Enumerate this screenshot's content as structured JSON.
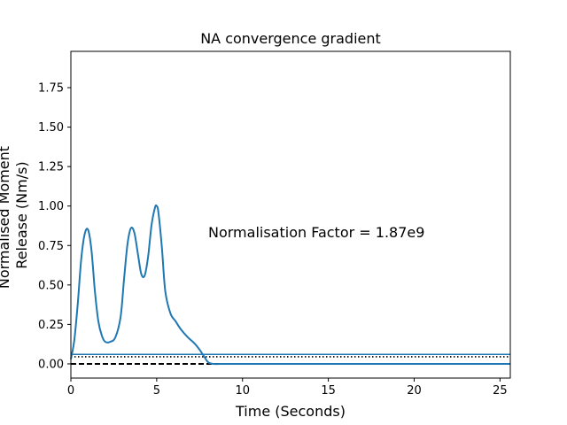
{
  "chart_data": {
    "type": "line",
    "title": "NA convergence gradient",
    "xlabel": "Time (Seconds)",
    "ylabel_lines": [
      "Normalised Moment",
      "Release (Nm/s)"
    ],
    "xlim": [
      0,
      25.6
    ],
    "ylim": [
      -0.09,
      1.98
    ],
    "x_ticks": [
      0,
      5,
      10,
      15,
      20,
      25
    ],
    "y_ticks": [
      0.0,
      0.25,
      0.5,
      0.75,
      1.0,
      1.25,
      1.5,
      1.75
    ],
    "x_tick_labels": [
      "0",
      "5",
      "10",
      "15",
      "20",
      "25"
    ],
    "y_tick_labels": [
      "0.00",
      "0.25",
      "0.50",
      "0.75",
      "1.00",
      "1.25",
      "1.50",
      "1.75"
    ],
    "annotation": "Normalisation Factor = 1.87e9",
    "reference_lines": [
      {
        "style": "solid",
        "color": "#1f77b4",
        "y": 0.06
      },
      {
        "style": "dotted",
        "color": "#000000",
        "y": 0.045
      },
      {
        "style": "dashed",
        "color": "#000000",
        "y": 0.0
      }
    ],
    "series": [
      {
        "color": "#1f77b4",
        "x": [
          0,
          0.2,
          0.4,
          0.6,
          0.8,
          1.0,
          1.2,
          1.4,
          1.6,
          1.8,
          2.0,
          2.3,
          2.6,
          2.9,
          3.1,
          3.3,
          3.5,
          3.7,
          3.9,
          4.1,
          4.3,
          4.5,
          4.7,
          4.9,
          5.0,
          5.1,
          5.3,
          5.5,
          5.8,
          6.1,
          6.4,
          6.8,
          7.2,
          7.5,
          7.8,
          8.0,
          8.3,
          9,
          10,
          12,
          15,
          18,
          20,
          22,
          25.6
        ],
        "y": [
          0.03,
          0.15,
          0.38,
          0.66,
          0.82,
          0.85,
          0.72,
          0.46,
          0.27,
          0.18,
          0.14,
          0.14,
          0.17,
          0.3,
          0.54,
          0.76,
          0.86,
          0.83,
          0.7,
          0.57,
          0.56,
          0.68,
          0.88,
          0.99,
          1.0,
          0.96,
          0.74,
          0.46,
          0.32,
          0.27,
          0.22,
          0.17,
          0.13,
          0.09,
          0.04,
          0.01,
          0.0,
          0.0,
          0.0,
          0.0,
          0.0,
          0.0,
          0.0,
          0.0,
          0.0
        ]
      }
    ]
  }
}
